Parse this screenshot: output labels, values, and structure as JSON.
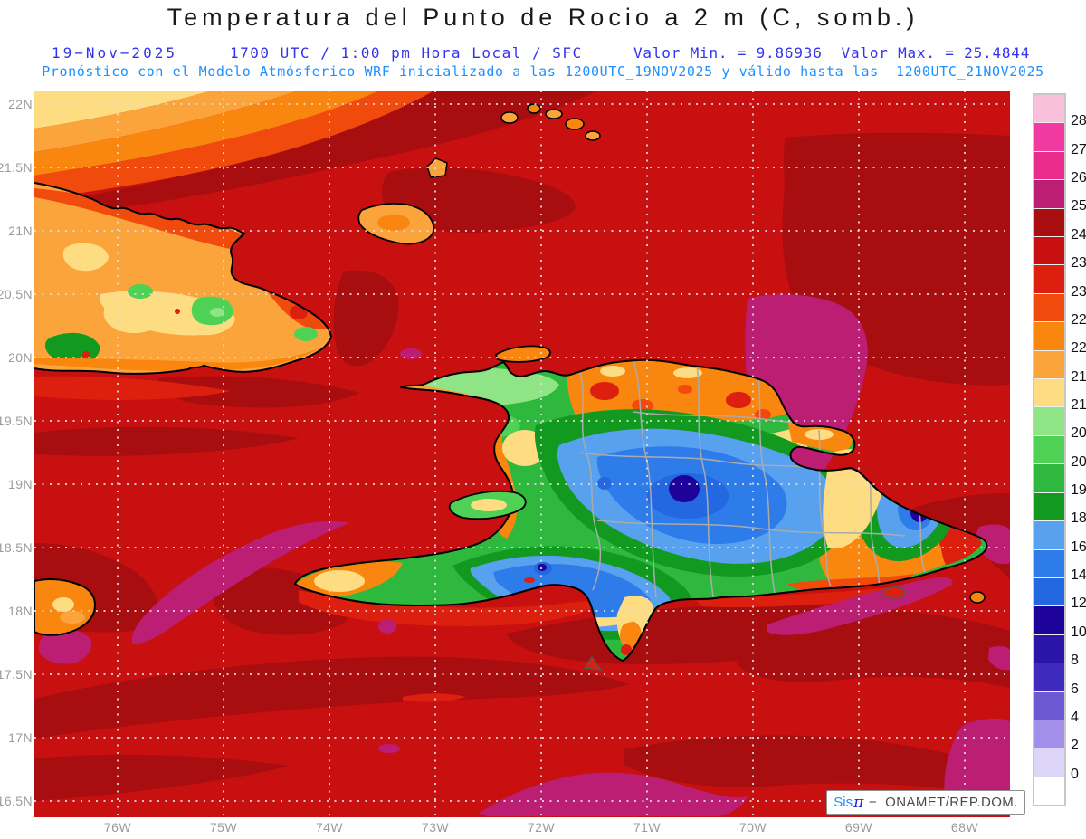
{
  "title": "Temperatura del Punto de Rocio a 2 m (C, somb.)",
  "subtitle": {
    "date": "19−Nov−2025",
    "time": "1700 UTC / 1:00 pm Hora Local / SFC",
    "minmax": "Valor Min. = 9.86936  Valor Max. = 25.4844",
    "forecast": "Pronóstico con el Modelo Atmósferico WRF inicializado a las 1200UTC_19NOV2025 y válido hasta las  1200UTC_21NOV2025"
  },
  "colors": {
    "title_text": "#1a1a1a",
    "subtitle_line1": "#3333EE",
    "subtitle_line2": "#1E90FF",
    "axis_text": "#9B9B9B",
    "grid": "#DCDCDC"
  },
  "axes": {
    "lat": [
      "22N",
      "21.5N",
      "21N",
      "20.5N",
      "20N",
      "19.5N",
      "19N",
      "18.5N",
      "18N",
      "17.5N",
      "17N",
      "16.5N"
    ],
    "lon": [
      "76W",
      "75W",
      "74W",
      "73W",
      "72W",
      "71W",
      "70W",
      "69W",
      "68W"
    ]
  },
  "colorbar": {
    "levels": [
      "28",
      "27",
      "26",
      "25",
      "24.5",
      "23.5",
      "23",
      "22.5",
      "22",
      "21.5",
      "21",
      "20.5",
      "20",
      "19",
      "18",
      "16",
      "14",
      "12",
      "10",
      "8",
      "6",
      "4",
      "2",
      "0"
    ],
    "colors": [
      "#F8C0DB",
      "#F03AA2",
      "#E92C8C",
      "#BC1E74",
      "#A80D10",
      "#C7100F",
      "#DC1F0E",
      "#F04B0D",
      "#F8860F",
      "#FBA43C",
      "#FDDC82",
      "#8FE585",
      "#4FD156",
      "#2EB93E",
      "#129A20",
      "#58A1EF",
      "#2E7BEA",
      "#2368E0",
      "#1D0399",
      "#2B15A9",
      "#3E2BBE",
      "#6C59D2",
      "#A18FE9",
      "#DDD5F7",
      "#FFFFFF"
    ]
  },
  "palette": {
    "gt28": "#F8C0DB",
    "t27": "#F03AA2",
    "t26": "#E92C8C",
    "t25": "#BC1E74",
    "t24_5": "#A80D10",
    "t23_5": "#C7100F",
    "t23": "#DC1F0E",
    "t22_5": "#F04B0D",
    "t22": "#F8860F",
    "t21_5": "#FBA43C",
    "t21": "#FDDC82",
    "t20_5": "#8FE585",
    "t20": "#4FD156",
    "t19": "#2EB93E",
    "t18": "#129A20",
    "t16": "#58A1EF",
    "t14": "#2E7BEA",
    "t12": "#2368E0",
    "t10": "#1D0399",
    "t8": "#2B15A9",
    "t6": "#3E2BBE",
    "t4": "#6C59D2",
    "t2": "#A18FE9",
    "t0": "#DDD5F7",
    "lt0": "#FFFFFF",
    "coast": "#000000",
    "admin": "#ABABAB",
    "island_gray": "#555555"
  },
  "watermark": {
    "sis": "Sis",
    "pi": "π",
    "rest": " −  ONAMET/REP.DOM."
  }
}
